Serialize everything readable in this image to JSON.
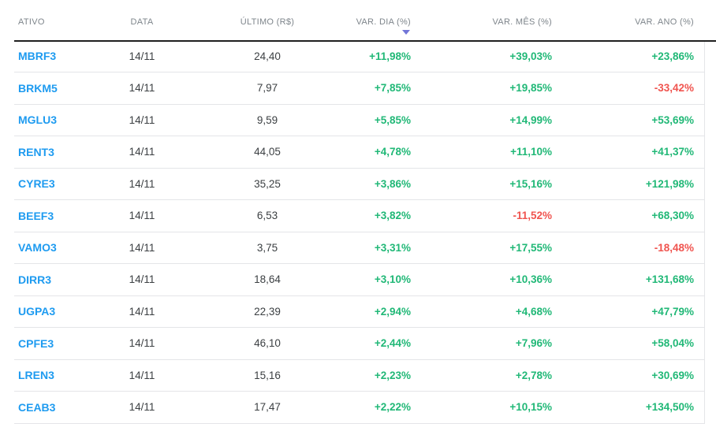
{
  "colors": {
    "positive": "#21b877",
    "negative": "#f0544f",
    "ticker": "#1e9bf0",
    "sort_arrow": "#7276d8"
  },
  "table": {
    "headers": [
      {
        "id": "ativo",
        "label": "ATIVO"
      },
      {
        "id": "data",
        "label": "DATA"
      },
      {
        "id": "ultimo",
        "label": "ÚLTIMO (R$)"
      },
      {
        "id": "var_dia",
        "label": "VAR. DIA (%)",
        "sort": "desc"
      },
      {
        "id": "var_mes",
        "label": "VAR. MÊS (%)"
      },
      {
        "id": "var_ano",
        "label": "VAR. ANO (%)"
      }
    ],
    "rows": [
      {
        "ativo": "MBRF3",
        "data": "14/11",
        "ultimo": "24,40",
        "var_dia": "+11,98%",
        "var_mes": "+39,03%",
        "var_ano": "+23,86%"
      },
      {
        "ativo": "BRKM5",
        "data": "14/11",
        "ultimo": "7,97",
        "var_dia": "+7,85%",
        "var_mes": "+19,85%",
        "var_ano": "-33,42%"
      },
      {
        "ativo": "MGLU3",
        "data": "14/11",
        "ultimo": "9,59",
        "var_dia": "+5,85%",
        "var_mes": "+14,99%",
        "var_ano": "+53,69%"
      },
      {
        "ativo": "RENT3",
        "data": "14/11",
        "ultimo": "44,05",
        "var_dia": "+4,78%",
        "var_mes": "+11,10%",
        "var_ano": "+41,37%"
      },
      {
        "ativo": "CYRE3",
        "data": "14/11",
        "ultimo": "35,25",
        "var_dia": "+3,86%",
        "var_mes": "+15,16%",
        "var_ano": "+121,98%"
      },
      {
        "ativo": "BEEF3",
        "data": "14/11",
        "ultimo": "6,53",
        "var_dia": "+3,82%",
        "var_mes": "-11,52%",
        "var_ano": "+68,30%"
      },
      {
        "ativo": "VAMO3",
        "data": "14/11",
        "ultimo": "3,75",
        "var_dia": "+3,31%",
        "var_mes": "+17,55%",
        "var_ano": "-18,48%"
      },
      {
        "ativo": "DIRR3",
        "data": "14/11",
        "ultimo": "18,64",
        "var_dia": "+3,10%",
        "var_mes": "+10,36%",
        "var_ano": "+131,68%"
      },
      {
        "ativo": "UGPA3",
        "data": "14/11",
        "ultimo": "22,39",
        "var_dia": "+2,94%",
        "var_mes": "+4,68%",
        "var_ano": "+47,79%"
      },
      {
        "ativo": "CPFE3",
        "data": "14/11",
        "ultimo": "46,10",
        "var_dia": "+2,44%",
        "var_mes": "+7,96%",
        "var_ano": "+58,04%"
      },
      {
        "ativo": "LREN3",
        "data": "14/11",
        "ultimo": "15,16",
        "var_dia": "+2,23%",
        "var_mes": "+2,78%",
        "var_ano": "+30,69%"
      },
      {
        "ativo": "CEAB3",
        "data": "14/11",
        "ultimo": "17,47",
        "var_dia": "+2,22%",
        "var_mes": "+10,15%",
        "var_ano": "+134,50%"
      }
    ]
  }
}
